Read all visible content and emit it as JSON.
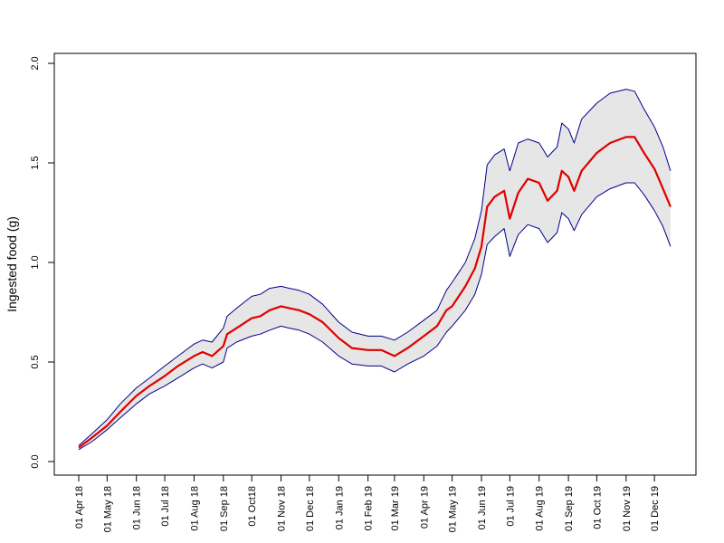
{
  "chart_data": {
    "type": "area",
    "title": "",
    "xlabel": "",
    "ylabel": "Ingested food (g)",
    "ylim": [
      0,
      2
    ],
    "xlim": [
      "2018-04-01",
      "2019-12-20"
    ],
    "y_ticks": [
      "0.0",
      "0.5",
      "1.0",
      "1.5",
      "2.0"
    ],
    "x_ticks": [
      {
        "date": "2018-04-01",
        "label": "01 Apr 18"
      },
      {
        "date": "2018-05-01",
        "label": "01 May 18"
      },
      {
        "date": "2018-06-01",
        "label": "01 Jun 18"
      },
      {
        "date": "2018-07-01",
        "label": "01 Jul 18"
      },
      {
        "date": "2018-08-01",
        "label": "01 Aug 18"
      },
      {
        "date": "2018-09-01",
        "label": "01 Sep 18"
      },
      {
        "date": "2018-10-01",
        "label": "01 Oct18"
      },
      {
        "date": "2018-11-01",
        "label": "01 Nov 18"
      },
      {
        "date": "2018-12-01",
        "label": "01 Dec 18"
      },
      {
        "date": "2019-01-01",
        "label": "01 Jan 19"
      },
      {
        "date": "2019-02-01",
        "label": "01 Feb 19"
      },
      {
        "date": "2019-03-01",
        "label": "01 Mar 19"
      },
      {
        "date": "2019-04-01",
        "label": "01 Apr 19"
      },
      {
        "date": "2019-05-01",
        "label": "01 May 19"
      },
      {
        "date": "2019-06-01",
        "label": "01 Jun 19"
      },
      {
        "date": "2019-07-01",
        "label": "01 Jul 19"
      },
      {
        "date": "2019-08-01",
        "label": "01 Aug 19"
      },
      {
        "date": "2019-09-01",
        "label": "01 Sep 19"
      },
      {
        "date": "2019-10-01",
        "label": "01 Oct 19"
      },
      {
        "date": "2019-11-01",
        "label": "01 Nov 19"
      },
      {
        "date": "2019-12-01",
        "label": "01 Dec 19"
      }
    ],
    "grid": false,
    "series": [
      {
        "role": "mean",
        "color": "#e00000",
        "points": [
          [
            "2018-04-01",
            0.07
          ],
          [
            "2018-04-15",
            0.12
          ],
          [
            "2018-05-01",
            0.18
          ],
          [
            "2018-05-15",
            0.25
          ],
          [
            "2018-06-01",
            0.33
          ],
          [
            "2018-06-15",
            0.38
          ],
          [
            "2018-07-01",
            0.43
          ],
          [
            "2018-07-15",
            0.48
          ],
          [
            "2018-08-01",
            0.53
          ],
          [
            "2018-08-10",
            0.55
          ],
          [
            "2018-08-20",
            0.53
          ],
          [
            "2018-09-01",
            0.58
          ],
          [
            "2018-09-05",
            0.64
          ],
          [
            "2018-09-15",
            0.67
          ],
          [
            "2018-10-01",
            0.72
          ],
          [
            "2018-10-10",
            0.73
          ],
          [
            "2018-10-20",
            0.76
          ],
          [
            "2018-11-01",
            0.78
          ],
          [
            "2018-11-10",
            0.77
          ],
          [
            "2018-11-20",
            0.76
          ],
          [
            "2018-12-01",
            0.74
          ],
          [
            "2018-12-15",
            0.7
          ],
          [
            "2019-01-01",
            0.62
          ],
          [
            "2019-01-15",
            0.57
          ],
          [
            "2019-02-01",
            0.56
          ],
          [
            "2019-02-15",
            0.56
          ],
          [
            "2019-03-01",
            0.53
          ],
          [
            "2019-03-15",
            0.57
          ],
          [
            "2019-04-01",
            0.63
          ],
          [
            "2019-04-15",
            0.68
          ],
          [
            "2019-04-25",
            0.76
          ],
          [
            "2019-05-01",
            0.78
          ],
          [
            "2019-05-15",
            0.88
          ],
          [
            "2019-05-25",
            0.97
          ],
          [
            "2019-06-01",
            1.08
          ],
          [
            "2019-06-07",
            1.28
          ],
          [
            "2019-06-15",
            1.33
          ],
          [
            "2019-06-25",
            1.36
          ],
          [
            "2019-07-01",
            1.22
          ],
          [
            "2019-07-10",
            1.35
          ],
          [
            "2019-07-20",
            1.42
          ],
          [
            "2019-08-01",
            1.4
          ],
          [
            "2019-08-10",
            1.31
          ],
          [
            "2019-08-20",
            1.36
          ],
          [
            "2019-08-25",
            1.46
          ],
          [
            "2019-09-01",
            1.43
          ],
          [
            "2019-09-07",
            1.36
          ],
          [
            "2019-09-15",
            1.46
          ],
          [
            "2019-10-01",
            1.55
          ],
          [
            "2019-10-15",
            1.6
          ],
          [
            "2019-11-01",
            1.63
          ],
          [
            "2019-11-10",
            1.63
          ],
          [
            "2019-11-20",
            1.55
          ],
          [
            "2019-12-01",
            1.47
          ],
          [
            "2019-12-10",
            1.37
          ],
          [
            "2019-12-18",
            1.28
          ]
        ]
      },
      {
        "role": "upper bound",
        "color": "#00008b",
        "points": [
          [
            "2018-04-01",
            0.08
          ],
          [
            "2018-04-15",
            0.14
          ],
          [
            "2018-05-01",
            0.21
          ],
          [
            "2018-05-15",
            0.29
          ],
          [
            "2018-06-01",
            0.37
          ],
          [
            "2018-06-15",
            0.42
          ],
          [
            "2018-07-01",
            0.48
          ],
          [
            "2018-07-15",
            0.53
          ],
          [
            "2018-08-01",
            0.59
          ],
          [
            "2018-08-10",
            0.61
          ],
          [
            "2018-08-20",
            0.6
          ],
          [
            "2018-09-01",
            0.67
          ],
          [
            "2018-09-05",
            0.73
          ],
          [
            "2018-09-15",
            0.77
          ],
          [
            "2018-10-01",
            0.83
          ],
          [
            "2018-10-10",
            0.84
          ],
          [
            "2018-10-20",
            0.87
          ],
          [
            "2018-11-01",
            0.88
          ],
          [
            "2018-11-10",
            0.87
          ],
          [
            "2018-11-20",
            0.86
          ],
          [
            "2018-12-01",
            0.84
          ],
          [
            "2018-12-15",
            0.79
          ],
          [
            "2019-01-01",
            0.7
          ],
          [
            "2019-01-15",
            0.65
          ],
          [
            "2019-02-01",
            0.63
          ],
          [
            "2019-02-15",
            0.63
          ],
          [
            "2019-03-01",
            0.61
          ],
          [
            "2019-03-15",
            0.65
          ],
          [
            "2019-04-01",
            0.71
          ],
          [
            "2019-04-15",
            0.76
          ],
          [
            "2019-04-25",
            0.86
          ],
          [
            "2019-05-01",
            0.9
          ],
          [
            "2019-05-15",
            1.0
          ],
          [
            "2019-05-25",
            1.12
          ],
          [
            "2019-06-01",
            1.26
          ],
          [
            "2019-06-07",
            1.49
          ],
          [
            "2019-06-15",
            1.54
          ],
          [
            "2019-06-25",
            1.57
          ],
          [
            "2019-07-01",
            1.46
          ],
          [
            "2019-07-10",
            1.6
          ],
          [
            "2019-07-20",
            1.62
          ],
          [
            "2019-08-01",
            1.6
          ],
          [
            "2019-08-10",
            1.53
          ],
          [
            "2019-08-20",
            1.58
          ],
          [
            "2019-08-25",
            1.7
          ],
          [
            "2019-09-01",
            1.67
          ],
          [
            "2019-09-07",
            1.6
          ],
          [
            "2019-09-15",
            1.72
          ],
          [
            "2019-10-01",
            1.8
          ],
          [
            "2019-10-15",
            1.85
          ],
          [
            "2019-11-01",
            1.87
          ],
          [
            "2019-11-10",
            1.86
          ],
          [
            "2019-11-20",
            1.77
          ],
          [
            "2019-12-01",
            1.68
          ],
          [
            "2019-12-10",
            1.58
          ],
          [
            "2019-12-18",
            1.46
          ]
        ]
      },
      {
        "role": "lower bound",
        "color": "#00008b",
        "points": [
          [
            "2018-04-01",
            0.06
          ],
          [
            "2018-04-15",
            0.1
          ],
          [
            "2018-05-01",
            0.16
          ],
          [
            "2018-05-15",
            0.22
          ],
          [
            "2018-06-01",
            0.29
          ],
          [
            "2018-06-15",
            0.34
          ],
          [
            "2018-07-01",
            0.38
          ],
          [
            "2018-07-15",
            0.42
          ],
          [
            "2018-08-01",
            0.47
          ],
          [
            "2018-08-10",
            0.49
          ],
          [
            "2018-08-20",
            0.47
          ],
          [
            "2018-09-01",
            0.5
          ],
          [
            "2018-09-05",
            0.57
          ],
          [
            "2018-09-15",
            0.6
          ],
          [
            "2018-10-01",
            0.63
          ],
          [
            "2018-10-10",
            0.64
          ],
          [
            "2018-10-20",
            0.66
          ],
          [
            "2018-11-01",
            0.68
          ],
          [
            "2018-11-10",
            0.67
          ],
          [
            "2018-11-20",
            0.66
          ],
          [
            "2018-12-01",
            0.64
          ],
          [
            "2018-12-15",
            0.6
          ],
          [
            "2019-01-01",
            0.53
          ],
          [
            "2019-01-15",
            0.49
          ],
          [
            "2019-02-01",
            0.48
          ],
          [
            "2019-02-15",
            0.48
          ],
          [
            "2019-03-01",
            0.45
          ],
          [
            "2019-03-15",
            0.49
          ],
          [
            "2019-04-01",
            0.53
          ],
          [
            "2019-04-15",
            0.58
          ],
          [
            "2019-04-25",
            0.65
          ],
          [
            "2019-05-01",
            0.68
          ],
          [
            "2019-05-15",
            0.76
          ],
          [
            "2019-05-25",
            0.84
          ],
          [
            "2019-06-01",
            0.94
          ],
          [
            "2019-06-07",
            1.09
          ],
          [
            "2019-06-15",
            1.13
          ],
          [
            "2019-06-25",
            1.17
          ],
          [
            "2019-07-01",
            1.03
          ],
          [
            "2019-07-10",
            1.14
          ],
          [
            "2019-07-20",
            1.19
          ],
          [
            "2019-08-01",
            1.17
          ],
          [
            "2019-08-10",
            1.1
          ],
          [
            "2019-08-20",
            1.15
          ],
          [
            "2019-08-25",
            1.25
          ],
          [
            "2019-09-01",
            1.22
          ],
          [
            "2019-09-07",
            1.16
          ],
          [
            "2019-09-15",
            1.24
          ],
          [
            "2019-10-01",
            1.33
          ],
          [
            "2019-10-15",
            1.37
          ],
          [
            "2019-11-01",
            1.4
          ],
          [
            "2019-11-10",
            1.4
          ],
          [
            "2019-11-20",
            1.34
          ],
          [
            "2019-12-01",
            1.26
          ],
          [
            "2019-12-10",
            1.18
          ],
          [
            "2019-12-18",
            1.08
          ]
        ]
      }
    ],
    "band_fill": "#e6e6e6",
    "axis_color": "#000000"
  }
}
